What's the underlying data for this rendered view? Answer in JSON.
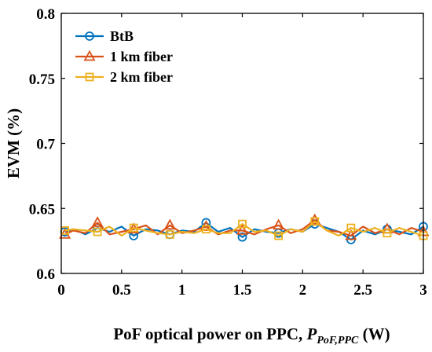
{
  "chart_data": {
    "type": "line",
    "xlabel_main": "PoF optical power on PPC, ",
    "xlabel_sym": "P",
    "xlabel_sub": "PoF,PPC",
    "xlabel_unit": " (W)",
    "ylabel": "EVM (%)",
    "xlim": [
      0,
      3
    ],
    "ylim": [
      0.6,
      0.8
    ],
    "xticks": [
      0,
      0.5,
      1,
      1.5,
      2,
      2.5,
      3
    ],
    "xtick_labels": [
      "0",
      "0.5",
      "1",
      "1.5",
      "2",
      "2.5",
      "3"
    ],
    "yticks": [
      0.6,
      0.65,
      0.7,
      0.75,
      0.8
    ],
    "ytick_labels": [
      "0.6",
      "0.65",
      "0.7",
      "0.75",
      "0.8"
    ],
    "grid": false,
    "legend_position": "top-left",
    "x": [
      0.03,
      0.1,
      0.2,
      0.3,
      0.4,
      0.5,
      0.6,
      0.7,
      0.8,
      0.9,
      1.0,
      1.1,
      1.2,
      1.3,
      1.4,
      1.5,
      1.6,
      1.7,
      1.8,
      1.9,
      2.0,
      2.1,
      2.2,
      2.3,
      2.4,
      2.5,
      2.6,
      2.7,
      2.8,
      2.9,
      3.0
    ],
    "series": [
      {
        "name": "BtB",
        "color": "#0072BD",
        "marker": "circle",
        "marker_x": [
          0.03,
          0.3,
          0.6,
          0.9,
          1.2,
          1.5,
          1.8,
          2.1,
          2.4,
          2.7,
          3.0
        ],
        "values": [
          0.632,
          0.634,
          0.63,
          0.635,
          0.632,
          0.636,
          0.629,
          0.634,
          0.633,
          0.63,
          0.633,
          0.632,
          0.639,
          0.632,
          0.635,
          0.628,
          0.634,
          0.632,
          0.631,
          0.634,
          0.632,
          0.638,
          0.635,
          0.632,
          0.626,
          0.633,
          0.63,
          0.634,
          0.632,
          0.63,
          0.636
        ]
      },
      {
        "name": "1 km fiber",
        "color": "#D95319",
        "marker": "triangle",
        "marker_x": [
          0.03,
          0.3,
          0.6,
          0.9,
          1.2,
          1.5,
          1.8,
          2.1,
          2.4,
          2.7,
          3.0
        ],
        "values": [
          0.63,
          0.633,
          0.631,
          0.639,
          0.63,
          0.632,
          0.634,
          0.637,
          0.63,
          0.637,
          0.631,
          0.633,
          0.636,
          0.63,
          0.633,
          0.633,
          0.63,
          0.634,
          0.637,
          0.631,
          0.634,
          0.641,
          0.633,
          0.632,
          0.629,
          0.636,
          0.631,
          0.634,
          0.63,
          0.635,
          0.632
        ]
      },
      {
        "name": "2 km fiber",
        "color": "#EDB120",
        "marker": "square",
        "marker_x": [
          0.03,
          0.3,
          0.6,
          0.9,
          1.2,
          1.5,
          1.8,
          2.1,
          2.4,
          2.7,
          3.0
        ],
        "values": [
          0.633,
          0.634,
          0.633,
          0.632,
          0.636,
          0.629,
          0.635,
          0.633,
          0.631,
          0.63,
          0.632,
          0.631,
          0.634,
          0.631,
          0.631,
          0.638,
          0.632,
          0.633,
          0.629,
          0.634,
          0.632,
          0.64,
          0.633,
          0.629,
          0.635,
          0.632,
          0.635,
          0.631,
          0.635,
          0.632,
          0.629
        ]
      }
    ]
  }
}
